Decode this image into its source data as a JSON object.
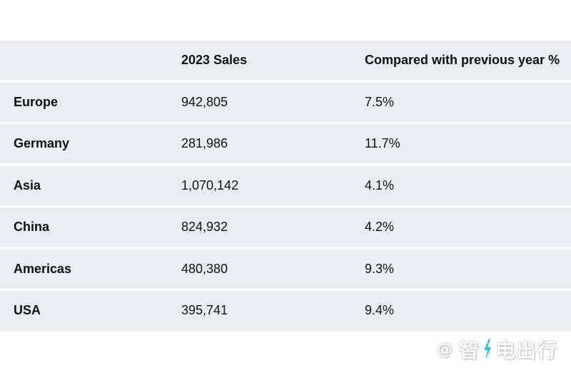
{
  "table": {
    "headers": [
      "",
      "2023 Sales",
      "Compared with previous year %"
    ],
    "rows": [
      [
        "Europe",
        "942,805",
        "7.5%"
      ],
      [
        "Germany",
        "281,986",
        "11.7%"
      ],
      [
        "Asia",
        "1,070,142",
        "4.1%"
      ],
      [
        "China",
        "824,932",
        "4.2%"
      ],
      [
        "Americas",
        "480,380",
        "9.3%"
      ],
      [
        "USA",
        "395,741",
        "9.4%"
      ]
    ]
  },
  "watermark": {
    "at": "@",
    "text_before_bolt": "智",
    "text_after_bolt": "电出行",
    "bolt_color": "#2ec4e6"
  }
}
